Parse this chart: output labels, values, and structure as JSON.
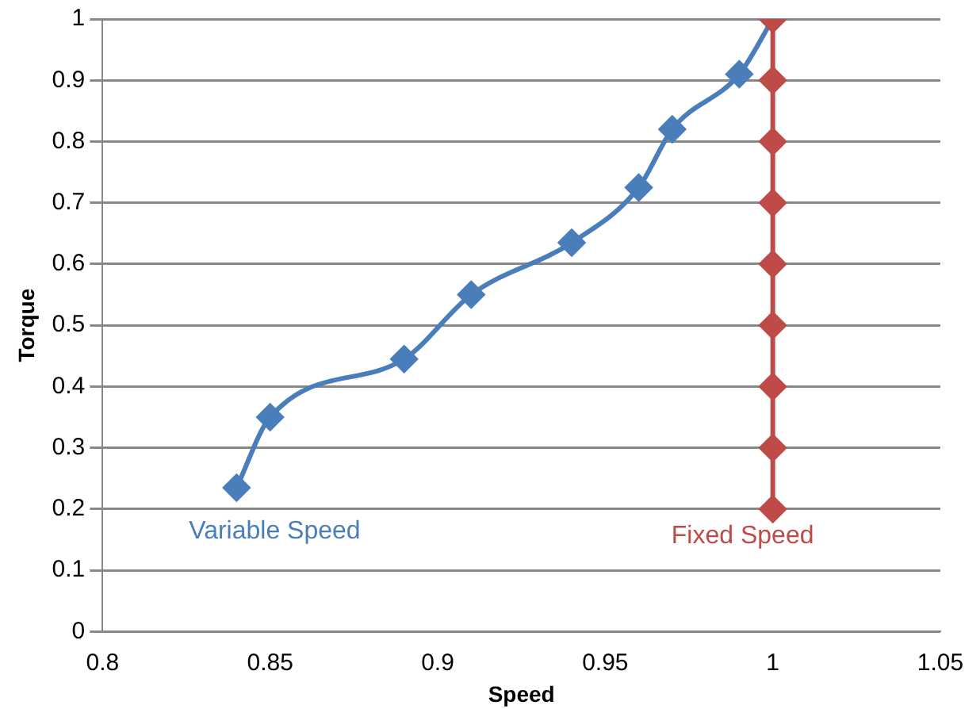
{
  "chart_data": {
    "type": "scatter",
    "xlabel": "Speed",
    "ylabel": "Torque",
    "xlim": [
      0.8,
      1.05
    ],
    "xticks": [
      0.8,
      0.85,
      0.9,
      0.95,
      1,
      1.05
    ],
    "ylim": [
      0,
      1
    ],
    "yticks": [
      0,
      0.1,
      0.2,
      0.3,
      0.4,
      0.5,
      0.6,
      0.7,
      0.8,
      0.9,
      1
    ],
    "grid": "y",
    "legend": false,
    "marker": "diamond",
    "line_style": "solid",
    "series": [
      {
        "name": "Variable Speed",
        "type": "line",
        "color": "#4a7ebb",
        "x": [
          0.84,
          0.85,
          0.89,
          0.91,
          0.94,
          0.96,
          0.97,
          0.99,
          1.0
        ],
        "values": [
          0.235,
          0.35,
          0.445,
          0.55,
          0.635,
          0.725,
          0.82,
          0.91,
          1.0
        ]
      },
      {
        "name": "Fixed Speed",
        "type": "line",
        "color": "#be4b48",
        "x": [
          1,
          1,
          1,
          1,
          1,
          1,
          1,
          1,
          1
        ],
        "values": [
          0.2,
          0.3,
          0.4,
          0.5,
          0.6,
          0.7,
          0.8,
          0.9,
          1.0
        ]
      }
    ]
  }
}
